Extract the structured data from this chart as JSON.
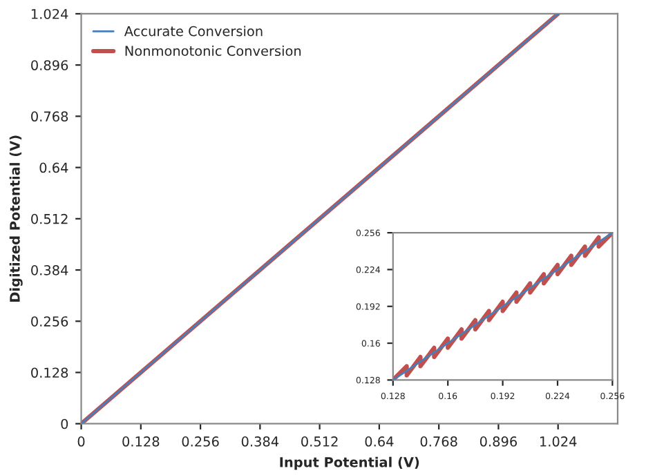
{
  "chart_data": [
    {
      "type": "line",
      "xlabel": "Input Potential (V)",
      "ylabel": "Digitized Potential (V)",
      "xlim": [
        0,
        1.152
      ],
      "ylim": [
        0,
        1.024
      ],
      "xticks": [
        0,
        0.128,
        0.256,
        0.384,
        0.512,
        0.64,
        0.768,
        0.896,
        1.024
      ],
      "yticks": [
        0,
        0.128,
        0.256,
        0.384,
        0.512,
        0.64,
        0.768,
        0.896,
        1.024
      ],
      "grid": false,
      "legend": "top left",
      "series": [
        {
          "name": "Accurate Conversion",
          "color": "#4a7ebb",
          "x": [
            0,
            1.024
          ],
          "values": [
            0,
            1.024
          ]
        },
        {
          "name": "Nonmonotonic Conversion",
          "color": "#c0504d",
          "x": [
            0,
            1.024
          ],
          "values": [
            0,
            1.024
          ]
        }
      ]
    },
    {
      "type": "line",
      "xlim": [
        0.128,
        0.256
      ],
      "ylim": [
        0.128,
        0.256
      ],
      "xticks": [
        0.128,
        0.16,
        0.192,
        0.224,
        0.256
      ],
      "yticks": [
        0.128,
        0.16,
        0.192,
        0.224,
        0.256
      ],
      "grid": false,
      "legend": false,
      "series": [
        {
          "color": "#4a7ebb",
          "x": [
            0.128,
            0.256
          ],
          "values": [
            0.128,
            0.256
          ]
        },
        {
          "color": "#c0504d",
          "x": [
            0.128,
            0.136,
            0.136,
            0.144,
            0.144,
            0.152,
            0.152,
            0.16,
            0.16,
            0.168,
            0.168,
            0.176,
            0.176,
            0.184,
            0.184,
            0.192,
            0.192,
            0.2,
            0.2,
            0.208,
            0.208,
            0.216,
            0.216,
            0.224,
            0.224,
            0.232,
            0.232,
            0.24,
            0.24,
            0.248,
            0.248,
            0.256
          ],
          "values": [
            0.128,
            0.14,
            0.132,
            0.148,
            0.14,
            0.156,
            0.148,
            0.164,
            0.156,
            0.172,
            0.164,
            0.18,
            0.172,
            0.188,
            0.18,
            0.196,
            0.188,
            0.204,
            0.196,
            0.212,
            0.204,
            0.22,
            0.212,
            0.228,
            0.22,
            0.236,
            0.228,
            0.244,
            0.236,
            0.252,
            0.244,
            0.256
          ]
        }
      ]
    }
  ]
}
